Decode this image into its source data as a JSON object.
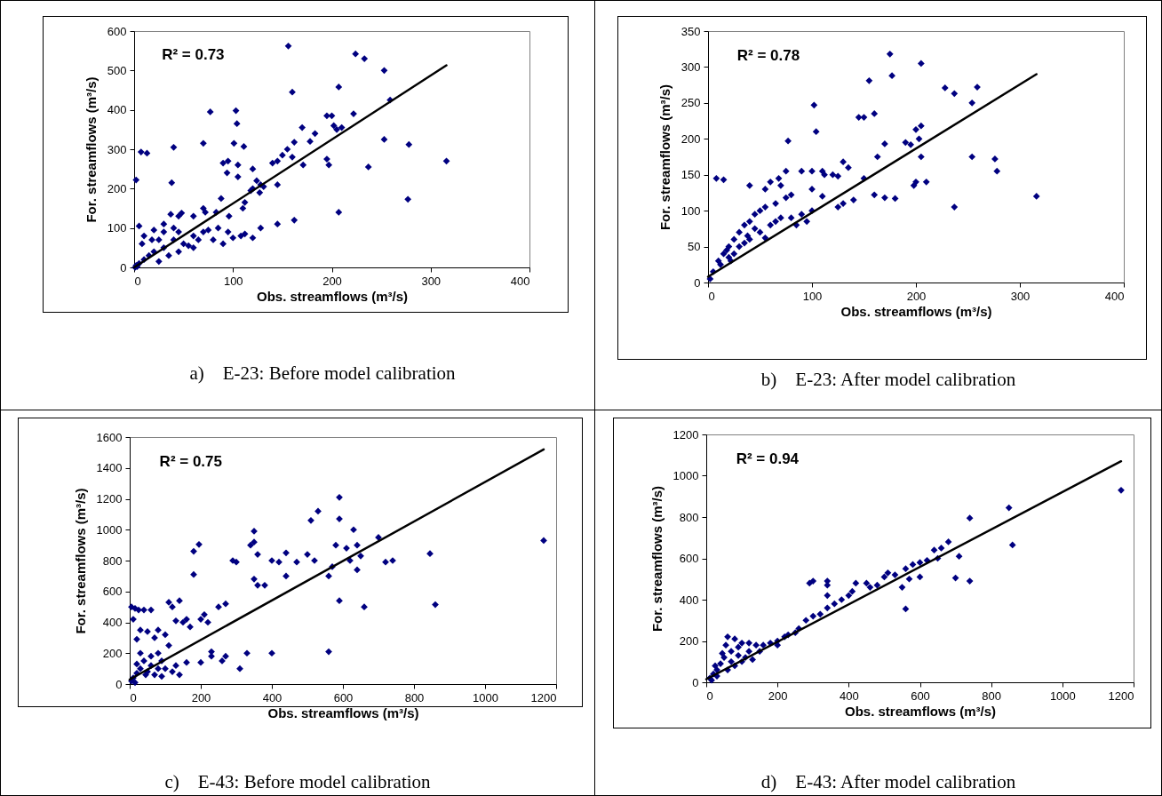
{
  "chart_data": [
    {
      "type": "scatter",
      "xlabel": "Obs. streamflows (m³/s)",
      "ylabel": "For. streamflows (m³/s)",
      "xlim": [
        0,
        400
      ],
      "xticks": [
        0,
        100,
        200,
        300,
        400
      ],
      "ylim": [
        0,
        600
      ],
      "yticks": [
        0,
        100,
        200,
        300,
        400,
        500,
        600
      ],
      "marker": "diamond",
      "annotations": [
        "R² = 0.73",
        "a)    E-23: Before model calibration"
      ],
      "series": [
        {
          "type": "scatter",
          "color": "#000080",
          "x": [
            156,
            224,
            233,
            253,
            259,
            160,
            207,
            200,
            195,
            222,
            205,
            210,
            202,
            170,
            183,
            178,
            162,
            155,
            150,
            145,
            140,
            160,
            195,
            197,
            171,
            145,
            145,
            162,
            207,
            237,
            253,
            278,
            277,
            316,
            77,
            103,
            104,
            101,
            111,
            70,
            40,
            7,
            13,
            2,
            38,
            90,
            95,
            105,
            94,
            105,
            120,
            128,
            124,
            118,
            127,
            131,
            120,
            88,
            110,
            112,
            96,
            83,
            70,
            72,
            60,
            45,
            48,
            37,
            112,
            108,
            120,
            128,
            95,
            85,
            20,
            5,
            10,
            30,
            25,
            40,
            50,
            60,
            70,
            75,
            30,
            20,
            15,
            10,
            5,
            2,
            35,
            45,
            55,
            65,
            40,
            60,
            25,
            8,
            18,
            30,
            45,
            80,
            90,
            100,
            1,
            3
          ],
          "values": [
            562,
            542,
            530,
            500,
            425,
            445,
            458,
            385,
            385,
            390,
            350,
            355,
            360,
            355,
            340,
            320,
            318,
            300,
            285,
            270,
            265,
            280,
            275,
            260,
            260,
            210,
            110,
            120,
            140,
            255,
            325,
            312,
            173,
            270,
            395,
            398,
            365,
            315,
            307,
            315,
            305,
            293,
            290,
            222,
            215,
            265,
            270,
            260,
            240,
            230,
            250,
            210,
            220,
            195,
            190,
            205,
            200,
            175,
            150,
            165,
            130,
            140,
            150,
            140,
            130,
            130,
            138,
            135,
            85,
            80,
            75,
            100,
            90,
            100,
            95,
            105,
            80,
            90,
            70,
            100,
            60,
            80,
            90,
            95,
            50,
            40,
            30,
            20,
            10,
            5,
            30,
            40,
            55,
            70,
            70,
            50,
            15,
            60,
            70,
            110,
            90,
            70,
            60,
            75,
            0,
            2
          ]
        },
        {
          "type": "line",
          "color": "#000000",
          "marker": "none",
          "x": [
            0,
            316
          ],
          "values": [
            0,
            513
          ]
        }
      ]
    },
    {
      "type": "scatter",
      "xlabel": "Obs. streamflows (m³/s)",
      "ylabel": "For. streamflows (m³/s)",
      "xlim": [
        0,
        400
      ],
      "xticks": [
        0,
        100,
        200,
        300,
        400
      ],
      "ylim": [
        0,
        350
      ],
      "yticks": [
        0,
        50,
        100,
        150,
        200,
        250,
        300,
        350
      ],
      "marker": "diamond",
      "annotations": [
        "R² = 0.78",
        "b)    E-23: After model calibration"
      ],
      "series": [
        {
          "type": "scatter",
          "color": "#000080",
          "x": [
            175,
            205,
            155,
            177,
            228,
            237,
            254,
            259,
            102,
            104,
            77,
            145,
            150,
            160,
            205,
            200,
            203,
            190,
            195,
            170,
            205,
            254,
            276,
            278,
            237,
            316,
            200,
            198,
            210,
            163,
            130,
            135,
            120,
            125,
            150,
            160,
            170,
            180,
            140,
            130,
            125,
            110,
            100,
            100,
            110,
            112,
            90,
            75,
            68,
            70,
            60,
            55,
            80,
            75,
            65,
            55,
            40,
            8,
            15,
            50,
            45,
            40,
            35,
            30,
            25,
            20,
            15,
            10,
            5,
            2,
            30,
            40,
            50,
            60,
            70,
            80,
            90,
            100,
            45,
            25,
            20,
            35,
            12,
            22,
            55,
            85,
            95,
            65,
            18,
            38
          ],
          "values": [
            318,
            305,
            281,
            288,
            271,
            263,
            250,
            272,
            247,
            210,
            197,
            230,
            230,
            235,
            218,
            213,
            200,
            195,
            192,
            193,
            175,
            175,
            172,
            155,
            105,
            120,
            140,
            135,
            140,
            175,
            168,
            160,
            150,
            148,
            145,
            122,
            118,
            117,
            115,
            110,
            105,
            120,
            130,
            155,
            155,
            150,
            155,
            155,
            145,
            135,
            140,
            130,
            122,
            118,
            110,
            105,
            135,
            145,
            143,
            100,
            95,
            85,
            80,
            70,
            60,
            50,
            40,
            30,
            15,
            5,
            50,
            60,
            70,
            80,
            90,
            90,
            95,
            100,
            75,
            40,
            35,
            55,
            25,
            30,
            62,
            80,
            85,
            85,
            45,
            65
          ]
        },
        {
          "type": "line",
          "color": "#000000",
          "marker": "none",
          "x": [
            0,
            316
          ],
          "values": [
            8,
            290
          ]
        }
      ]
    },
    {
      "type": "scatter",
      "xlabel": "Obs. streamflows (m³/s)",
      "ylabel": "For. streamflows (m³/s)",
      "xlim": [
        0,
        1200
      ],
      "xticks": [
        0,
        200,
        400,
        600,
        800,
        1000,
        1200
      ],
      "ylim": [
        0,
        1600
      ],
      "yticks": [
        0,
        200,
        400,
        600,
        800,
        1000,
        1200,
        1400,
        1600
      ],
      "marker": "diamond",
      "annotations": [
        "R² = 0.75",
        "c)    E-43: Before model calibration"
      ],
      "series": [
        {
          "type": "scatter",
          "color": "#000080",
          "x": [
            1165,
            860,
            845,
            660,
            560,
            590,
            590,
            530,
            510,
            630,
            580,
            610,
            640,
            650,
            700,
            740,
            720,
            620,
            640,
            570,
            560,
            590,
            500,
            520,
            470,
            440,
            420,
            440,
            350,
            350,
            340,
            360,
            400,
            290,
            300,
            350,
            360,
            380,
            230,
            230,
            330,
            400,
            310,
            270,
            260,
            180,
            195,
            180,
            140,
            120,
            110,
            150,
            160,
            200,
            210,
            220,
            250,
            270,
            5,
            10,
            15,
            25,
            40,
            60,
            50,
            30,
            20,
            70,
            80,
            100,
            130,
            170,
            200,
            160,
            130,
            110,
            90,
            80,
            60,
            40,
            30,
            20,
            10,
            5,
            50,
            70,
            100,
            120,
            140,
            90,
            30,
            20,
            60,
            45,
            15,
            80
          ],
          "values": [
            930,
            515,
            845,
            500,
            210,
            1210,
            1070,
            1120,
            1060,
            1000,
            900,
            880,
            900,
            830,
            950,
            800,
            790,
            800,
            740,
            760,
            700,
            540,
            840,
            800,
            790,
            850,
            790,
            700,
            990,
            920,
            900,
            840,
            800,
            800,
            790,
            680,
            640,
            640,
            210,
            180,
            200,
            200,
            100,
            180,
            150,
            860,
            905,
            710,
            540,
            500,
            530,
            400,
            420,
            420,
            450,
            400,
            500,
            520,
            500,
            420,
            490,
            480,
            480,
            480,
            340,
            350,
            290,
            300,
            350,
            320,
            410,
            370,
            140,
            140,
            120,
            250,
            150,
            200,
            180,
            150,
            100,
            70,
            40,
            20,
            80,
            60,
            100,
            80,
            60,
            50,
            200,
            130,
            120,
            60,
            10,
            100
          ]
        },
        {
          "type": "line",
          "color": "#000000",
          "marker": "none",
          "x": [
            0,
            1165
          ],
          "values": [
            30,
            1520
          ]
        }
      ]
    },
    {
      "type": "scatter",
      "xlabel": "Obs. streamflows (m³/s)",
      "ylabel": "For. streamflows (m³/s)",
      "xlim": [
        0,
        1200
      ],
      "xticks": [
        0,
        200,
        400,
        600,
        800,
        1000,
        1200
      ],
      "ylim": [
        0,
        1200
      ],
      "yticks": [
        0,
        200,
        400,
        600,
        800,
        1000,
        1200
      ],
      "marker": "diamond",
      "annotations": [
        "R² = 0.94",
        "d)    E-43: After model calibration"
      ],
      "series": [
        {
          "type": "scatter",
          "color": "#000080",
          "x": [
            1165,
            850,
            740,
            860,
            740,
            700,
            710,
            680,
            660,
            640,
            650,
            620,
            600,
            580,
            560,
            570,
            550,
            560,
            600,
            500,
            480,
            460,
            530,
            510,
            450,
            420,
            410,
            400,
            380,
            360,
            340,
            320,
            300,
            290,
            340,
            340,
            340,
            300,
            280,
            260,
            250,
            220,
            200,
            180,
            160,
            140,
            120,
            100,
            80,
            60,
            70,
            90,
            110,
            130,
            50,
            40,
            30,
            20,
            10,
            60,
            80,
            100,
            150,
            70,
            45,
            55,
            90,
            120,
            30,
            15,
            25,
            200,
            230
          ],
          "values": [
            930,
            845,
            795,
            665,
            490,
            505,
            610,
            680,
            650,
            640,
            600,
            590,
            580,
            570,
            550,
            500,
            460,
            355,
            510,
            510,
            470,
            460,
            520,
            530,
            480,
            480,
            440,
            420,
            400,
            380,
            360,
            330,
            490,
            480,
            490,
            470,
            420,
            320,
            300,
            260,
            240,
            220,
            200,
            190,
            180,
            180,
            190,
            190,
            210,
            220,
            150,
            130,
            120,
            110,
            120,
            90,
            60,
            40,
            20,
            60,
            80,
            100,
            150,
            100,
            140,
            180,
            170,
            150,
            30,
            10,
            80,
            180,
            230
          ]
        },
        {
          "type": "line",
          "color": "#000000",
          "marker": "none",
          "x": [
            0,
            1165
          ],
          "values": [
            15,
            1070
          ]
        }
      ]
    }
  ]
}
